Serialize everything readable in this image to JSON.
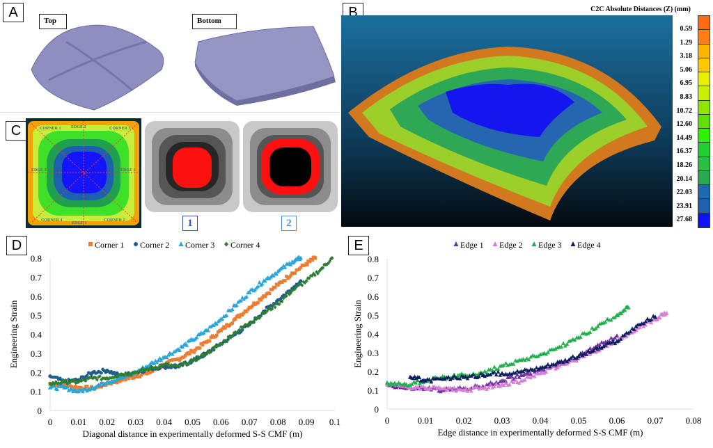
{
  "panels": {
    "a": {
      "label": "A",
      "top_tag": "Top",
      "bottom_tag": "Bottom"
    },
    "b": {
      "label": "B",
      "colorbar_title": "C2C Absolute Distances (Z) (mm)",
      "colorbar_ticks": [
        "0.59",
        "1.29",
        "3.18",
        "5.06",
        "6.95",
        "8.83",
        "10.72",
        "12.60",
        "14.49",
        "16.37",
        "18.26",
        "20.14",
        "22.03",
        "23.91",
        "27.68"
      ],
      "colorbar_colors": [
        "#ff6a10",
        "#ff7f10",
        "#ffb400",
        "#ffc800",
        "#e6f000",
        "#c8f000",
        "#8ee600",
        "#5fe000",
        "#2ef000",
        "#1ed030",
        "#28c040",
        "#2aa850",
        "#1e6ab0",
        "#1e60b0",
        "#1010ff"
      ]
    },
    "c": {
      "label": "C",
      "map_labels": [
        "CORNER 1",
        "EDGE 2",
        "CORNER 3",
        "EDGE 3",
        "EDGE 1",
        "CORNER 4",
        "EDGE 4",
        "CORNER 2"
      ],
      "stage_1": "1",
      "stage_2": "2"
    }
  },
  "chart_data": [
    {
      "panel_label": "D",
      "type": "scatter",
      "xlabel": "Diagonal distance in experimentally deformed S-S CMF (m)",
      "ylabel": "Engineering  Strain",
      "xlim": [
        0,
        0.1
      ],
      "ylim": [
        0,
        0.8
      ],
      "xticks": [
        "0",
        "0.01",
        "0.02",
        "0.03",
        "0.04",
        "0.05",
        "0.06",
        "0.07",
        "0.08",
        "0.09",
        "0.1"
      ],
      "yticks": [
        "0",
        "0.1",
        "0.2",
        "0.3",
        "0.4",
        "0.5",
        "0.6",
        "0.7",
        "0.8"
      ],
      "grid": false,
      "legend": "top",
      "series": [
        {
          "name": "Corner 1",
          "marker": "square",
          "color": "#ed7d31",
          "x": [
            0,
            0.005,
            0.01,
            0.015,
            0.02,
            0.025,
            0.03,
            0.035,
            0.04,
            0.045,
            0.05,
            0.055,
            0.06,
            0.065,
            0.07,
            0.075,
            0.08,
            0.085,
            0.09,
            0.093
          ],
          "y": [
            0.14,
            0.13,
            0.12,
            0.115,
            0.14,
            0.16,
            0.18,
            0.2,
            0.24,
            0.27,
            0.31,
            0.36,
            0.42,
            0.48,
            0.54,
            0.6,
            0.66,
            0.72,
            0.77,
            0.8
          ]
        },
        {
          "name": "Corner 2",
          "marker": "circle",
          "color": "#1f5f8b",
          "x": [
            0,
            0.005,
            0.01,
            0.015,
            0.02,
            0.025,
            0.03,
            0.035,
            0.04,
            0.045,
            0.05,
            0.055,
            0.06,
            0.065,
            0.07,
            0.075,
            0.08,
            0.085,
            0.088
          ],
          "y": [
            0.18,
            0.15,
            0.16,
            0.2,
            0.21,
            0.18,
            0.2,
            0.22,
            0.23,
            0.23,
            0.26,
            0.3,
            0.35,
            0.4,
            0.45,
            0.52,
            0.58,
            0.64,
            0.68
          ]
        },
        {
          "name": "Corner 3",
          "marker": "triangle",
          "color": "#2aa6d8",
          "x": [
            0,
            0.005,
            0.01,
            0.015,
            0.02,
            0.025,
            0.03,
            0.035,
            0.04,
            0.045,
            0.05,
            0.055,
            0.06,
            0.065,
            0.07,
            0.075,
            0.08,
            0.085,
            0.088
          ],
          "y": [
            0.12,
            0.12,
            0.1,
            0.12,
            0.15,
            0.17,
            0.2,
            0.24,
            0.28,
            0.32,
            0.37,
            0.42,
            0.48,
            0.55,
            0.62,
            0.68,
            0.73,
            0.78,
            0.8
          ]
        },
        {
          "name": "Corner 4",
          "marker": "diamond",
          "color": "#2e7d32",
          "x": [
            0,
            0.005,
            0.01,
            0.015,
            0.02,
            0.025,
            0.03,
            0.035,
            0.04,
            0.045,
            0.05,
            0.055,
            0.06,
            0.065,
            0.07,
            0.075,
            0.08,
            0.085,
            0.09,
            0.095,
            0.099
          ],
          "y": [
            0.14,
            0.15,
            0.15,
            0.17,
            0.17,
            0.19,
            0.2,
            0.22,
            0.24,
            0.23,
            0.26,
            0.3,
            0.35,
            0.41,
            0.46,
            0.51,
            0.56,
            0.63,
            0.68,
            0.74,
            0.8
          ]
        }
      ]
    },
    {
      "panel_label": "E",
      "type": "scatter",
      "xlabel": "Edge distance in experimentally deformed S-S CMF (m)",
      "ylabel": "Engineering  Strain",
      "xlim": [
        0,
        0.08
      ],
      "ylim": [
        0,
        0.8
      ],
      "xticks": [
        "0",
        "0.01",
        "0.02",
        "0.03",
        "0.04",
        "0.05",
        "0.06",
        "0.07",
        "0.08"
      ],
      "yticks": [
        "0",
        "0.1",
        "0.2",
        "0.3",
        "0.4",
        "0.5",
        "0.6",
        "0.7",
        "0.8"
      ],
      "grid": false,
      "legend": "top",
      "series": [
        {
          "name": "Edge 1",
          "marker": "triangle",
          "color": "#7030a0",
          "x": [
            0,
            0.005,
            0.01,
            0.015,
            0.02,
            0.025,
            0.03,
            0.035,
            0.04,
            0.045,
            0.05,
            0.055,
            0.06
          ],
          "y": [
            0.13,
            0.11,
            0.11,
            0.1,
            0.11,
            0.12,
            0.15,
            0.18,
            0.21,
            0.24,
            0.28,
            0.34,
            0.39
          ]
        },
        {
          "name": "Edge 2",
          "marker": "triangle",
          "color": "#d77fd6",
          "x": [
            0,
            0.005,
            0.01,
            0.015,
            0.02,
            0.025,
            0.03,
            0.035,
            0.04,
            0.045,
            0.05,
            0.055,
            0.06,
            0.065,
            0.07,
            0.073
          ],
          "y": [
            0.13,
            0.12,
            0.11,
            0.11,
            0.1,
            0.11,
            0.13,
            0.15,
            0.19,
            0.23,
            0.27,
            0.31,
            0.36,
            0.42,
            0.48,
            0.51
          ]
        },
        {
          "name": "Edge 3",
          "marker": "triangle",
          "color": "#1fb04c",
          "x": [
            0,
            0.005,
            0.01,
            0.015,
            0.02,
            0.025,
            0.03,
            0.035,
            0.04,
            0.045,
            0.05,
            0.055,
            0.06,
            0.063
          ],
          "y": [
            0.14,
            0.13,
            0.15,
            0.17,
            0.18,
            0.19,
            0.23,
            0.26,
            0.29,
            0.33,
            0.38,
            0.44,
            0.5,
            0.54
          ]
        },
        {
          "name": "Edge 4",
          "marker": "triangle",
          "color": "#0d1f5c",
          "x": [
            0.006,
            0.01,
            0.015,
            0.02,
            0.025,
            0.03,
            0.035,
            0.04,
            0.045,
            0.05,
            0.055,
            0.06,
            0.065,
            0.07
          ],
          "y": [
            0.17,
            0.15,
            0.16,
            0.17,
            0.18,
            0.19,
            0.2,
            0.22,
            0.25,
            0.28,
            0.32,
            0.36,
            0.44,
            0.49
          ]
        }
      ]
    }
  ]
}
